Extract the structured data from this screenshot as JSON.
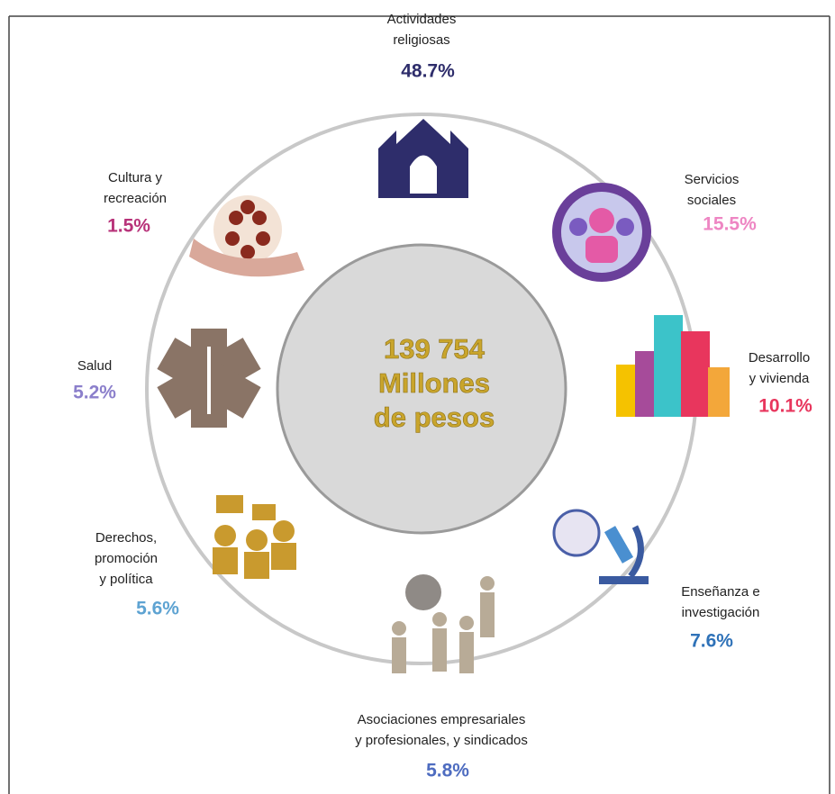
{
  "center": {
    "lines": [
      "139 754",
      "Millones",
      "de pesos"
    ]
  },
  "sectors": [
    {
      "label": [
        "Actividades",
        "religiosas"
      ],
      "value": "48.7%",
      "color": "#2e2d6b"
    },
    {
      "label": [
        "Servicios",
        "sociales"
      ],
      "value": "15.5%",
      "color": "#ee86c3"
    },
    {
      "label": [
        "Desarrollo",
        "y vivienda"
      ],
      "value": "10.1%",
      "color": "#e8365d"
    },
    {
      "label": [
        "Enseñanza e",
        "investigación"
      ],
      "value": "7.6%",
      "color": "#2f72b8"
    },
    {
      "label": [
        "Asociaciones empresariales",
        "y profesionales,  y sindicados"
      ],
      "value": "5.8%",
      "color": "#4e6cc0"
    },
    {
      "label": [
        "Derechos,",
        "promoción",
        "y política"
      ],
      "value": "5.6%",
      "color": "#5ea3d2"
    },
    {
      "label": [
        "Salud"
      ],
      "value": "5.2%",
      "color": "#8b7fcb"
    },
    {
      "label": [
        "Cultura y",
        "recreación"
      ],
      "value": "1.5%",
      "color": "#b8337a"
    }
  ]
}
